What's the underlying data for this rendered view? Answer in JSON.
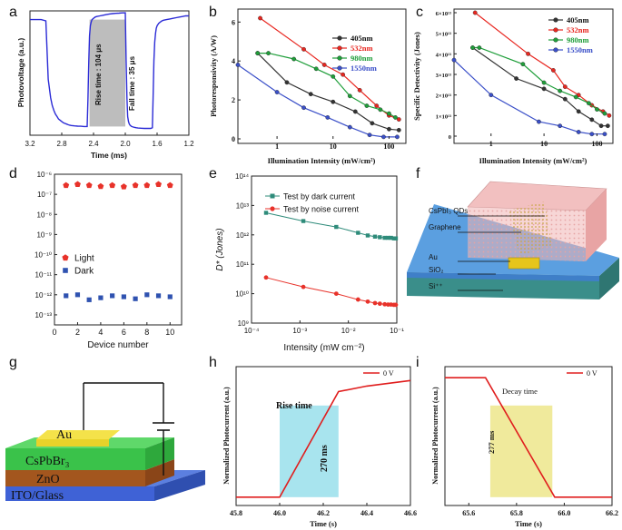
{
  "panel_labels": [
    "a",
    "b",
    "c",
    "d",
    "e",
    "f",
    "g",
    "h",
    "i"
  ],
  "chart_data": [
    {
      "panel": "a",
      "type": "line",
      "xlabel": "Time (ms)",
      "ylabel": "Photovoltage (a.u.)",
      "xlim": [
        3.2,
        1.2
      ],
      "xticks": [
        "3.2",
        "2.8",
        "2.4",
        "2.0",
        "1.6",
        "1.2"
      ],
      "color": "#2b2bd6",
      "shade_color": "#bdbdbd",
      "x": [
        3.2,
        3.06,
        3.0,
        2.97,
        2.94,
        2.92,
        2.9,
        2.88,
        2.86,
        2.84,
        2.82,
        2.8,
        2.78,
        2.76,
        2.74,
        2.72,
        2.7,
        2.68,
        2.64,
        2.6,
        2.56,
        2.52,
        2.5,
        2.48,
        2.47,
        2.46,
        2.45,
        2.44,
        2.43,
        2.42,
        2.4,
        2.38,
        2.36,
        2.32,
        2.28,
        2.24,
        2.2,
        2.16,
        2.12,
        2.08,
        2.04,
        2.0,
        1.99,
        1.98,
        1.97,
        1.96,
        1.95,
        1.94,
        1.93,
        1.92,
        1.9,
        1.88,
        1.86,
        1.84,
        1.8,
        1.76,
        1.72,
        1.7,
        1.68,
        1.66,
        1.65,
        1.64,
        1.63,
        1.62,
        1.61,
        1.6,
        1.58,
        1.56,
        1.54,
        1.52,
        1.48,
        1.44,
        1.4,
        1.36,
        1.32,
        1.28,
        1.24,
        1.2
      ],
      "y": [
        0.93,
        0.93,
        0.92,
        0.45,
        0.3,
        0.24,
        0.2,
        0.17,
        0.15,
        0.13,
        0.12,
        0.11,
        0.1,
        0.095,
        0.09,
        0.085,
        0.08,
        0.078,
        0.075,
        0.073,
        0.072,
        0.07,
        0.07,
        0.07,
        0.3,
        0.6,
        0.8,
        0.88,
        0.91,
        0.93,
        0.94,
        0.95,
        0.955,
        0.96,
        0.965,
        0.97,
        0.975,
        0.978,
        0.98,
        0.982,
        0.984,
        0.985,
        0.6,
        0.3,
        0.15,
        0.11,
        0.09,
        0.08,
        0.075,
        0.07,
        0.066,
        0.063,
        0.06,
        0.058,
        0.056,
        0.055,
        0.055,
        0.055,
        0.055,
        0.06,
        0.3,
        0.6,
        0.75,
        0.82,
        0.86,
        0.88,
        0.9,
        0.91,
        0.92,
        0.925,
        0.93,
        0.935,
        0.94,
        0.945,
        0.95,
        0.955,
        0.96,
        0.96
      ],
      "shade_x": [
        2.45,
        2.0
      ],
      "annotations": [
        "Rise time : 104 μs",
        "Fall time : 35 μs"
      ]
    },
    {
      "panel": "b",
      "type": "line",
      "xscale": "log",
      "xlabel": "Illumination Intensity (mW/cm²)",
      "ylabel": "Photoresponsivity (A/W)",
      "xlim": [
        0.2,
        200
      ],
      "ylim": [
        0,
        6.2
      ],
      "xticks": [
        0.1,
        1,
        10,
        100
      ],
      "xtick_labels": [
        "0.1",
        "1",
        "10",
        "100"
      ],
      "yticks": [
        0,
        2,
        4,
        6
      ],
      "series": [
        {
          "name": "405nm",
          "color": "#333333",
          "x": [
            0.45,
            1.5,
            4,
            10,
            25,
            50,
            100,
            150
          ],
          "y": [
            4.4,
            2.9,
            2.3,
            1.9,
            1.4,
            0.8,
            0.5,
            0.45
          ]
        },
        {
          "name": "532nm",
          "color": "#e8261f",
          "x": [
            0.5,
            3,
            7,
            15,
            30,
            60,
            100,
            150
          ],
          "y": [
            6.2,
            4.6,
            3.8,
            3.3,
            2.5,
            1.7,
            1.2,
            1.0
          ]
        },
        {
          "name": "980nm",
          "color": "#1f9e3a",
          "x": [
            0.45,
            0.7,
            2,
            5,
            10,
            20,
            40,
            70,
            100,
            130
          ],
          "y": [
            4.4,
            4.4,
            4.1,
            3.6,
            3.2,
            2.2,
            1.7,
            1.5,
            1.3,
            1.1
          ]
        },
        {
          "name": "1550nm",
          "color": "#3a4fc8",
          "x": [
            0.2,
            1,
            3,
            8,
            20,
            45,
            80,
            140
          ],
          "y": [
            3.8,
            2.4,
            1.6,
            1.1,
            0.6,
            0.2,
            0.1,
            0.1
          ]
        }
      ]
    },
    {
      "panel": "c",
      "type": "line",
      "xscale": "log",
      "xlabel": "Illumination Intensity (mW/cm²)",
      "ylabel": "Specific Detectivity (Jones)",
      "xlim": [
        0.2,
        200
      ],
      "ylim": [
        0,
        60000000000000.0
      ],
      "xticks": [
        0.1,
        1,
        10,
        100
      ],
      "xtick_labels": [
        "0.1",
        "1",
        "10",
        "100"
      ],
      "yticks": [
        0,
        10000000000000.0,
        20000000000000.0,
        30000000000000.0,
        40000000000000.0,
        50000000000000.0,
        60000000000000.0
      ],
      "ytick_labels": [
        "0",
        "1×10¹³",
        "2×10¹³",
        "3×10¹³",
        "4×10¹³",
        "5×10¹³",
        "6×10¹³"
      ],
      "series": [
        {
          "name": "405nm",
          "color": "#333333",
          "x": [
            0.45,
            3,
            10,
            25,
            45,
            80,
            120,
            160
          ],
          "y": [
            43000000000000.0,
            28000000000000.0,
            23000000000000.0,
            18000000000000.0,
            12000000000000.0,
            8000000000000.0,
            5000000000000.0,
            5000000000000.0
          ]
        },
        {
          "name": "532nm",
          "color": "#e8261f",
          "x": [
            0.5,
            5,
            15,
            25,
            45,
            80,
            130,
            170
          ],
          "y": [
            60000000000000.0,
            40000000000000.0,
            32000000000000.0,
            24000000000000.0,
            20000000000000.0,
            15000000000000.0,
            12000000000000.0,
            10000000000000.0
          ]
        },
        {
          "name": "980nm",
          "color": "#1f9e3a",
          "x": [
            0.45,
            0.6,
            4,
            10,
            20,
            40,
            70,
            100,
            140
          ],
          "y": [
            43000000000000.0,
            43000000000000.0,
            35000000000000.0,
            26000000000000.0,
            22000000000000.0,
            19000000000000.0,
            16000000000000.0,
            13000000000000.0,
            11000000000000.0
          ]
        },
        {
          "name": "1550nm",
          "color": "#3a4fc8",
          "x": [
            0.2,
            1,
            8,
            20,
            45,
            80,
            140
          ],
          "y": [
            37000000000000.0,
            20000000000000.0,
            7000000000000.0,
            5000000000000.0,
            2000000000000.0,
            1000000000000.0,
            1000000000000.0
          ]
        }
      ]
    },
    {
      "panel": "d",
      "type": "scatter",
      "xlabel": "Device number",
      "ylabel": "",
      "xlim": [
        0,
        11
      ],
      "ylim_log": [
        -13.5,
        -6
      ],
      "xticks": [
        0,
        2,
        4,
        6,
        8,
        10
      ],
      "ytick_exps": [
        -13,
        -12,
        -11,
        -10,
        -9,
        -8,
        -7,
        -6
      ],
      "ytick_labels": [
        "10⁻¹³",
        "10⁻¹²",
        "10⁻¹¹",
        "10⁻¹⁰",
        "10⁻⁹",
        "10⁻⁸",
        "10⁻⁷",
        "10⁻⁶"
      ],
      "series": [
        {
          "name": "Light",
          "color": "#e8322a",
          "marker": "pentagon",
          "x": [
            1,
            2,
            3,
            4,
            5,
            6,
            7,
            8,
            9,
            10
          ],
          "y_exp": [
            -6.55,
            -6.5,
            -6.55,
            -6.6,
            -6.55,
            -6.62,
            -6.55,
            -6.55,
            -6.5,
            -6.55
          ]
        },
        {
          "name": "Dark",
          "color": "#2f52b0",
          "marker": "square",
          "x": [
            1,
            2,
            3,
            4,
            5,
            6,
            7,
            8,
            9,
            10
          ],
          "y_exp": [
            -12.05,
            -12.0,
            -12.25,
            -12.15,
            -12.05,
            -12.1,
            -12.2,
            -12.0,
            -12.05,
            -12.1
          ]
        }
      ]
    },
    {
      "panel": "e",
      "type": "line",
      "xscale": "log",
      "yscale": "log",
      "xlabel": "Intensity (mW cm⁻²)",
      "ylabel": "D* (Jones)",
      "xlim_log": [
        -4,
        -1
      ],
      "ylim_log": [
        9,
        14
      ],
      "xtick_exps": [
        -4,
        -3,
        -2,
        -1
      ],
      "xtick_labels": [
        "10⁻⁴",
        "10⁻³",
        "10⁻²",
        "10⁻¹"
      ],
      "ytick_exps": [
        9,
        10,
        11,
        12,
        13,
        14
      ],
      "ytick_labels": [
        "10⁹",
        "10¹⁰",
        "10¹¹",
        "10¹²",
        "10¹³",
        "10¹⁴"
      ],
      "series": [
        {
          "name": "Test by dark current",
          "color": "#2e8b7a",
          "marker": "square",
          "x_exp": [
            -3.7,
            -2.93,
            -2.25,
            -1.8,
            -1.6,
            -1.45,
            -1.35,
            -1.25,
            -1.18,
            -1.12,
            -1.06,
            -1.02
          ],
          "y_exp": [
            12.75,
            12.47,
            12.27,
            12.07,
            11.98,
            11.94,
            11.92,
            11.9,
            11.9,
            11.9,
            11.88,
            11.88
          ]
        },
        {
          "name": "Test by noise current",
          "color": "#e8322a",
          "marker": "circle",
          "x_exp": [
            -3.7,
            -2.93,
            -2.25,
            -1.8,
            -1.6,
            -1.45,
            -1.35,
            -1.25,
            -1.18,
            -1.12,
            -1.06,
            -1.02
          ],
          "y_exp": [
            10.55,
            10.23,
            10.0,
            9.8,
            9.73,
            9.68,
            9.66,
            9.64,
            9.63,
            9.63,
            9.62,
            9.62
          ]
        }
      ]
    },
    {
      "panel": "h",
      "type": "line",
      "xlabel": "Time (s)",
      "ylabel": "Normalized Photocurrent (a.u.)",
      "xlim": [
        45.8,
        46.6
      ],
      "xticks": [
        "45.8",
        "46.0",
        "46.2",
        "46.4",
        "46.6"
      ],
      "legend": "0 V",
      "color": "#e01e1e",
      "x": [
        45.8,
        46.0,
        46.27,
        46.4,
        46.6
      ],
      "y": [
        0.06,
        0.06,
        0.82,
        0.86,
        0.9
      ],
      "shade_x": [
        46.0,
        46.27
      ],
      "shade_color": "#a8e4ee",
      "annotations": [
        "Rise time",
        "270 ms"
      ]
    },
    {
      "panel": "i",
      "type": "line",
      "xlabel": "Time (s)",
      "ylabel": "Normalized Photocurrent (a.u.)",
      "xlim": [
        65.5,
        66.2
      ],
      "xticks": [
        "65.6",
        "65.8",
        "66.0",
        "66.2"
      ],
      "legend": "0 V",
      "color": "#e01e1e",
      "x": [
        65.5,
        65.67,
        65.96,
        66.2
      ],
      "y": [
        0.92,
        0.92,
        0.06,
        0.06
      ],
      "shade_x": [
        65.69,
        65.95
      ],
      "shade_color": "#f0ea9c",
      "annotations": [
        "Decay time",
        "277 ms"
      ]
    }
  ],
  "diagram_f": {
    "labels": [
      "CsPbI₃ QDs",
      "Graphene",
      "Au",
      "SiO₂",
      "Si⁺⁺"
    ]
  },
  "diagram_g": {
    "layers": [
      "Au",
      "CsPbBr₃",
      "ZnO",
      "ITO/Glass"
    ]
  }
}
